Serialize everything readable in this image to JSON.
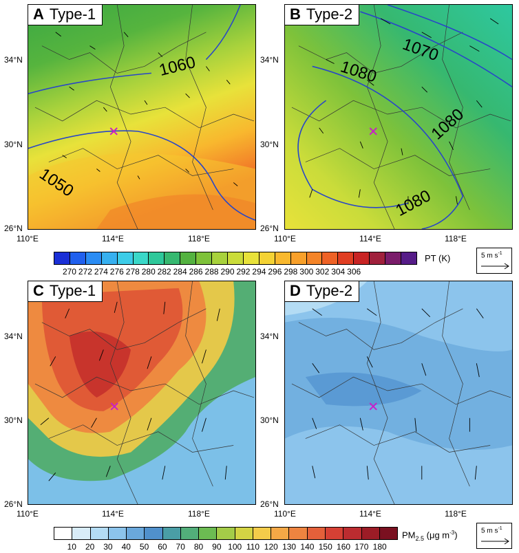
{
  "panels": [
    {
      "letter": "A",
      "title": "Type-1"
    },
    {
      "letter": "B",
      "title": "Type-2"
    },
    {
      "letter": "C",
      "title": "Type-1"
    },
    {
      "letter": "D",
      "title": "Type-2"
    }
  ],
  "axes": {
    "lat_labels": [
      "34°N",
      "30°N",
      "26°N"
    ],
    "lon_labels": [
      "110°E",
      "114°E",
      "118°E"
    ]
  },
  "contours": {
    "A": [
      "1060",
      "1050"
    ],
    "B": [
      "1080",
      "1070",
      "1080",
      "1080"
    ]
  },
  "colorbar_pt": {
    "unit": "PT (K)",
    "ticks": [
      "270",
      "272",
      "274",
      "276",
      "278",
      "280",
      "282",
      "284",
      "286",
      "288",
      "290",
      "292",
      "294",
      "296",
      "298",
      "300",
      "302",
      "304",
      "306"
    ],
    "colors": [
      "#1a2fd6",
      "#2060ee",
      "#2a8cf4",
      "#36b0f0",
      "#3ccce8",
      "#3ad8c8",
      "#2ec89a",
      "#36b870",
      "#54b240",
      "#7ec23a",
      "#a8d23c",
      "#cadc3a",
      "#e8e23a",
      "#f4d234",
      "#f8b82e",
      "#f8a02a",
      "#f48428",
      "#ee6226",
      "#e03e22",
      "#c82424",
      "#a0203c",
      "#7a1c6a",
      "#561c88"
    ]
  },
  "colorbar_pm": {
    "unit_main": "PM",
    "unit_sub": "2.5",
    "unit_rest": " (μg m",
    "unit_sup": "-3",
    "unit_close": ")",
    "ticks": [
      "10",
      "20",
      "30",
      "40",
      "50",
      "60",
      "70",
      "80",
      "90",
      "100",
      "110",
      "120",
      "130",
      "140",
      "150",
      "160",
      "170",
      "180"
    ],
    "colors": [
      "#ffffff",
      "#d8ecf8",
      "#b4dcf4",
      "#8cc4ec",
      "#6aa8dc",
      "#5090cc",
      "#4a9ea6",
      "#52ae7a",
      "#6cbc52",
      "#a4cc48",
      "#d4d444",
      "#f4cc4a",
      "#f4a846",
      "#ee8440",
      "#e4603a",
      "#d64034",
      "#bc2c30",
      "#9c1c26",
      "#7a1020"
    ]
  },
  "reference_vector": {
    "label": "5 m s",
    "sup": "-1"
  }
}
